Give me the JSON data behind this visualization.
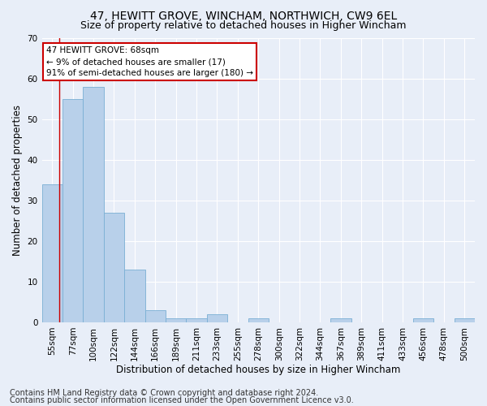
{
  "title1": "47, HEWITT GROVE, WINCHAM, NORTHWICH, CW9 6EL",
  "title2": "Size of property relative to detached houses in Higher Wincham",
  "xlabel": "Distribution of detached houses by size in Higher Wincham",
  "ylabel": "Number of detached properties",
  "categories": [
    "55sqm",
    "77sqm",
    "100sqm",
    "122sqm",
    "144sqm",
    "166sqm",
    "189sqm",
    "211sqm",
    "233sqm",
    "255sqm",
    "278sqm",
    "300sqm",
    "322sqm",
    "344sqm",
    "367sqm",
    "389sqm",
    "411sqm",
    "433sqm",
    "456sqm",
    "478sqm",
    "500sqm"
  ],
  "values": [
    34,
    55,
    58,
    27,
    13,
    3,
    1,
    1,
    2,
    0,
    1,
    0,
    0,
    0,
    1,
    0,
    0,
    0,
    1,
    0,
    1
  ],
  "bar_color": "#b8d0ea",
  "bar_edge_color": "#7aafd4",
  "annotation_box_text": "47 HEWITT GROVE: 68sqm\n← 9% of detached houses are smaller (17)\n91% of semi-detached houses are larger (180) →",
  "annotation_box_color": "#ffffff",
  "annotation_box_edge_color": "#cc0000",
  "redline_x": 0.36,
  "ylim": [
    0,
    70
  ],
  "yticks": [
    0,
    10,
    20,
    30,
    40,
    50,
    60,
    70
  ],
  "footer1": "Contains HM Land Registry data © Crown copyright and database right 2024.",
  "footer2": "Contains public sector information licensed under the Open Government Licence v3.0.",
  "bg_color": "#e8eef8",
  "plot_bg_color": "#e8eef8",
  "grid_color": "#ffffff",
  "title1_fontsize": 10,
  "title2_fontsize": 9,
  "xlabel_fontsize": 8.5,
  "ylabel_fontsize": 8.5,
  "tick_fontsize": 7.5,
  "footer_fontsize": 7
}
